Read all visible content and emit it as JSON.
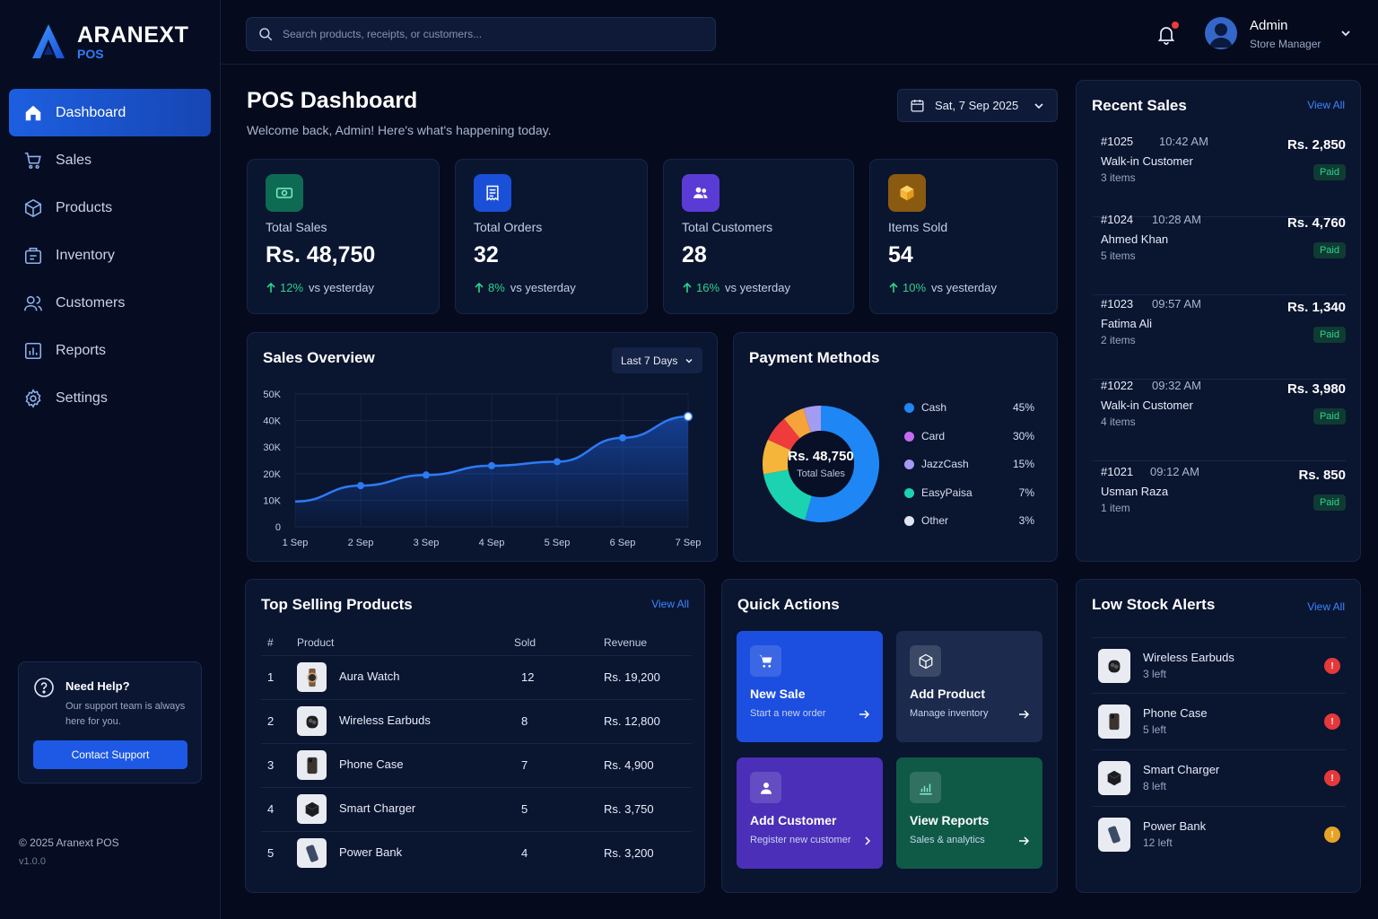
{
  "brand": {
    "name": "ARANEXT",
    "sub": "POS"
  },
  "nav": [
    {
      "label": "Dashboard",
      "icon": "home-icon",
      "active": true
    },
    {
      "label": "Sales",
      "icon": "cart-icon"
    },
    {
      "label": "Products",
      "icon": "box-icon"
    },
    {
      "label": "Inventory",
      "icon": "inventory-icon"
    },
    {
      "label": "Customers",
      "icon": "users-icon"
    },
    {
      "label": "Reports",
      "icon": "reports-icon"
    },
    {
      "label": "Settings",
      "icon": "gear-icon"
    }
  ],
  "help": {
    "title": "Need Help?",
    "text": "Our support team is always here for you.",
    "button": "Contact Support"
  },
  "footer": {
    "copyright": "© 2025 Aranext POS",
    "version": "v1.0.0"
  },
  "search": {
    "placeholder": "Search products, receipts, or customers..."
  },
  "user": {
    "name": "Admin",
    "role": "Store Manager"
  },
  "page": {
    "title": "POS Dashboard",
    "subtitle": "Welcome back, Admin! Here's what's happening today.",
    "date": "Sat, 7 Sep 2025"
  },
  "stats": [
    {
      "label": "Total Sales",
      "value": "Rs. 48,750",
      "pct": "12%",
      "suffix": "vs yesterday",
      "icon": "money-icon",
      "color": "#0e6b53"
    },
    {
      "label": "Total Orders",
      "value": "32",
      "pct": "8%",
      "suffix": "vs yesterday",
      "icon": "receipt-icon",
      "color": "#1a4fd8"
    },
    {
      "label": "Total Customers",
      "value": "28",
      "pct": "16%",
      "suffix": "vs yesterday",
      "icon": "users-icon",
      "color": "#5b3bd6"
    },
    {
      "label": "Items Sold",
      "value": "54",
      "pct": "10%",
      "suffix": "vs yesterday",
      "icon": "package-icon",
      "color": "#8a5a10"
    }
  ],
  "sales_overview": {
    "title": "Sales Overview",
    "range": "Last 7 Days"
  },
  "chart_data": {
    "type": "area",
    "categories": [
      "1 Sep",
      "2 Sep",
      "3 Sep",
      "4 Sep",
      "5 Sep",
      "6 Sep",
      "7 Sep"
    ],
    "values": [
      9500,
      15500,
      19500,
      23000,
      24500,
      33500,
      41500
    ],
    "ylim": [
      0,
      50000
    ],
    "yticks": [
      "0",
      "10K",
      "20K",
      "30K",
      "40K",
      "50K"
    ],
    "grid": true,
    "color": "#2d7bf4"
  },
  "payment_methods": {
    "title": "Payment Methods",
    "center_value": "Rs. 48,750",
    "center_label": "Total Sales",
    "slices": [
      {
        "name": "Cash",
        "pct": "45%",
        "value": 45,
        "color": "#1f86f5"
      },
      {
        "name": "Card",
        "pct": "30%",
        "value": 30,
        "color": "#c56bf0"
      },
      {
        "name": "JazzCash",
        "pct": "15%",
        "value": 15,
        "color": "#a49bf2"
      },
      {
        "name": "EasyPaisa",
        "pct": "7%",
        "value": 7,
        "color": "#1bd3b0"
      },
      {
        "name": "Other",
        "pct": "3%",
        "value": 3,
        "color": "#dfe5f1"
      }
    ]
  },
  "recent_sales": {
    "title": "Recent Sales",
    "view_all": "View All",
    "rows": [
      {
        "id": "#1025",
        "time": "10:42 AM",
        "customer": "Walk-in Customer",
        "items": "3 items",
        "amount": "Rs. 2,850",
        "status": "Paid"
      },
      {
        "id": "#1024",
        "time": "10:28 AM",
        "customer": "Ahmed Khan",
        "items": "5 items",
        "amount": "Rs. 4,760",
        "status": "Paid"
      },
      {
        "id": "#1023",
        "time": "09:57 AM",
        "customer": "Fatima Ali",
        "items": "2 items",
        "amount": "Rs. 1,340",
        "status": "Paid"
      },
      {
        "id": "#1022",
        "time": "09:32 AM",
        "customer": "Walk-in Customer",
        "items": "4 items",
        "amount": "Rs. 3,980",
        "status": "Paid"
      },
      {
        "id": "#1021",
        "time": "09:12 AM",
        "customer": "Usman Raza",
        "items": "1 item",
        "amount": "Rs. 850",
        "status": "Paid"
      }
    ]
  },
  "top_products": {
    "title": "Top Selling Products",
    "view_all": "View All",
    "headers": [
      "#",
      "Product",
      "Sold",
      "Revenue"
    ],
    "rows": [
      {
        "rank": "1",
        "name": "Aura Watch",
        "sold": "12",
        "revenue": "Rs. 19,200",
        "icon": "watch-icon"
      },
      {
        "rank": "2",
        "name": "Wireless Earbuds",
        "sold": "8",
        "revenue": "Rs. 12,800",
        "icon": "earbuds-icon"
      },
      {
        "rank": "3",
        "name": "Phone Case",
        "sold": "7",
        "revenue": "Rs. 4,900",
        "icon": "phone-case-icon"
      },
      {
        "rank": "4",
        "name": "Smart Charger",
        "sold": "5",
        "revenue": "Rs. 3,750",
        "icon": "charger-icon"
      },
      {
        "rank": "5",
        "name": "Power Bank",
        "sold": "4",
        "revenue": "Rs. 3,200",
        "icon": "power-bank-icon"
      }
    ]
  },
  "quick_actions": {
    "title": "Quick Actions",
    "tiles": [
      {
        "title": "New Sale",
        "sub": "Start a new order",
        "icon": "cart-icon",
        "color": "#1c4fe0"
      },
      {
        "title": "Add Product",
        "sub": "Manage inventory",
        "icon": "box-icon",
        "color": "#1b2a4d"
      },
      {
        "title": "Add Customer",
        "sub": "Register new customer",
        "icon": "user-icon",
        "color": "#4b2fb8"
      },
      {
        "title": "View Reports",
        "sub": "Sales & analytics",
        "icon": "chart-icon",
        "color": "#0f5a47"
      }
    ]
  },
  "low_stock": {
    "title": "Low Stock Alerts",
    "view_all": "View All",
    "rows": [
      {
        "name": "Wireless Earbuds",
        "left": "3 left",
        "badge": "!",
        "color": "#e5383b",
        "icon": "earbuds-icon"
      },
      {
        "name": "Phone Case",
        "left": "5 left",
        "badge": "!",
        "color": "#e5383b",
        "icon": "phone-case-icon"
      },
      {
        "name": "Smart Charger",
        "left": "8 left",
        "badge": "!",
        "color": "#e5383b",
        "icon": "charger-icon"
      },
      {
        "name": "Power Bank",
        "left": "12 left",
        "badge": "!",
        "color": "#e7a323",
        "icon": "power-bank-icon"
      }
    ]
  }
}
